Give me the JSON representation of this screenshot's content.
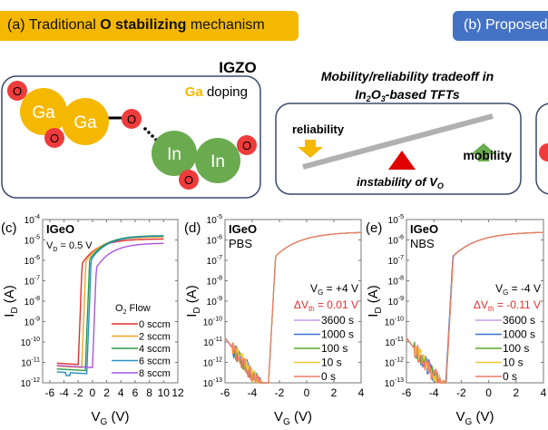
{
  "panel_a": {
    "banner_prefix": "(a) Traditional ",
    "banner_bold": "O stabilizing",
    "banner_suffix": " mechanism",
    "material": "IGZO",
    "dopant": "Ga",
    "doping_label": " doping",
    "atoms": {
      "ga": "Ga",
      "in": "In",
      "o": "O"
    }
  },
  "panel_b": {
    "banner": "(b) Proposed"
  },
  "tradeoff": {
    "title_line1": "Mobility/reliability tradeoff in",
    "title_line2_pre": "In",
    "title_sub1": "2",
    "title_o": "O",
    "title_sub2": "3",
    "title_line2_post": "-based TFTs",
    "reliability": "reliability",
    "mobility": "mobility",
    "instability_pre": "instability of V",
    "instability_sub": "O"
  },
  "colors": {
    "ga": "#f5b800",
    "in": "#6aab4f",
    "o": "#ee3b3b",
    "banner_a": "#f5b800",
    "banner_b": "#4472c4",
    "box_border": "#3a4a6b",
    "arrow_down": "#f5b800",
    "arrow_up": "#6aab4f",
    "fulcrum": "#e00000",
    "lever": "#b0b0b0",
    "delta_text": "#e03030"
  },
  "chart_data": [
    {
      "type": "line",
      "panel_label": "(c)",
      "title": "IGeO",
      "annotation": "V_D = 0.5 V",
      "xlabel": "V_G (V)",
      "ylabel": "I_D (A)",
      "xlim": [
        -7,
        12
      ],
      "ylim_log10": [
        -12,
        -4
      ],
      "xticks": [
        -6,
        -4,
        -2,
        0,
        2,
        4,
        6,
        8,
        10,
        12
      ],
      "yticks_exp": [
        -4,
        -5,
        -6,
        -7,
        -8,
        -9,
        -10,
        -11,
        -12
      ],
      "legend_title": "O2 Flow",
      "series": [
        {
          "name": "0 sccm",
          "color": "#e03030",
          "vth": -2.0,
          "off_log": -11.1,
          "on_log": -4.95
        },
        {
          "name": "2 sccm",
          "color": "#f5a623",
          "vth": -1.5,
          "off_log": -11.25,
          "on_log": -4.85
        },
        {
          "name": "4 sccm",
          "color": "#2e9a4a",
          "vth": -1.0,
          "off_log": -11.4,
          "on_log": -4.78
        },
        {
          "name": "6 sccm",
          "color": "#2a8fbf",
          "vth": -0.8,
          "off_log": -11.55,
          "on_log": -4.8
        },
        {
          "name": "8 sccm",
          "color": "#a855e0",
          "vth": 0.0,
          "off_log": -11.25,
          "on_log": -5.15
        }
      ]
    },
    {
      "type": "line",
      "panel_label": "(d)",
      "title": "IGeO",
      "subtitle": "PBS",
      "annotation_vg": "V_G = +4 V",
      "annotation_dvth": "ΔV_th = 0.01 V",
      "xlabel": "V_G (V)",
      "ylabel": "I_D (A)",
      "xlim": [
        -6,
        4
      ],
      "ylim_log10": [
        -13,
        -5
      ],
      "xticks": [
        -6,
        -4,
        -2,
        0,
        2,
        4
      ],
      "yticks_exp": [
        -5,
        -6,
        -7,
        -8,
        -9,
        -10,
        -11,
        -12,
        -13
      ],
      "series": [
        {
          "name": "3600 s",
          "color": "#c79be8"
        },
        {
          "name": "1000 s",
          "color": "#3a6fd6"
        },
        {
          "name": "100 s",
          "color": "#5aa832"
        },
        {
          "name": "10 s",
          "color": "#f0c830"
        },
        {
          "name": "0 s",
          "color": "#f07a6a"
        }
      ],
      "vth_approx": -2.8,
      "on_log_at_4V": -5.6
    },
    {
      "type": "line",
      "panel_label": "(e)",
      "title": "IGeO",
      "subtitle": "NBS",
      "annotation_vg": "V_G = -4 V",
      "annotation_dvth": "ΔV_th = -0.11 V",
      "xlabel": "V_G (V)",
      "ylabel": "I_D (A)",
      "xlim": [
        -6,
        4
      ],
      "ylim_log10": [
        -13,
        -5
      ],
      "xticks": [
        -6,
        -4,
        -2,
        0,
        2,
        4
      ],
      "yticks_exp": [
        -5,
        -6,
        -7,
        -8,
        -9,
        -10,
        -11,
        -12,
        -13
      ],
      "series": [
        {
          "name": "3600 s",
          "color": "#c79be8"
        },
        {
          "name": "1000 s",
          "color": "#3a6fd6"
        },
        {
          "name": "100 s",
          "color": "#5aa832"
        },
        {
          "name": "10 s",
          "color": "#f0c830"
        },
        {
          "name": "0 s",
          "color": "#f07a6a"
        }
      ],
      "vth_approx": -3.1,
      "on_log_at_4V": -5.6
    }
  ]
}
